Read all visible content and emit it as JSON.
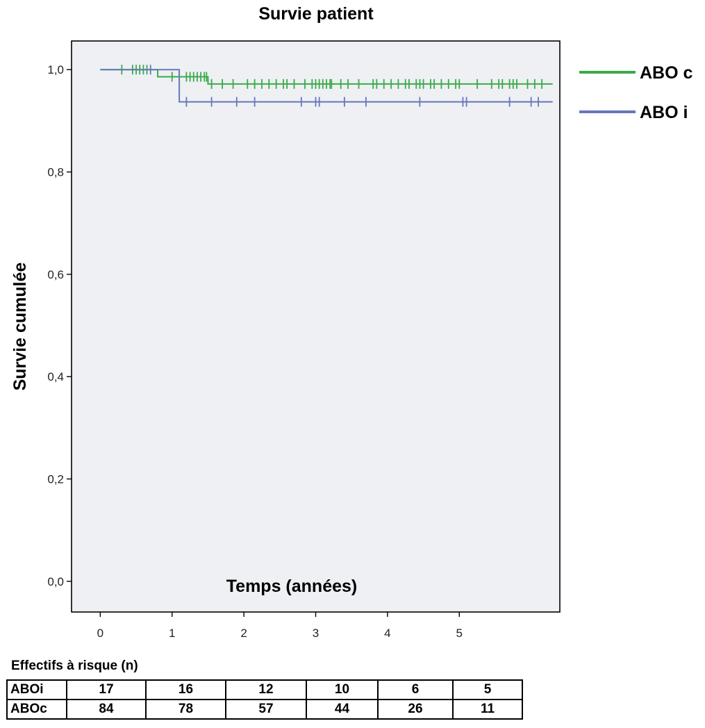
{
  "chart_data": {
    "type": "line",
    "title": "Survie patient",
    "xlabel": "Temps (années)",
    "ylabel": "Survie cumulée",
    "xlim": [
      -0.4,
      6.4
    ],
    "ylim": [
      -0.06,
      1.056
    ],
    "x_ticks": [
      0,
      1,
      2,
      3,
      4,
      5
    ],
    "x_tick_labels": [
      "0",
      "1",
      "2",
      "3",
      "4",
      "5"
    ],
    "y_ticks": [
      0.0,
      0.2,
      0.4,
      0.6,
      0.8,
      1.0
    ],
    "y_tick_labels": [
      "0,0",
      "0,2",
      "0,4",
      "0,6",
      "0,8",
      "1,0"
    ],
    "legend_position": "right",
    "series": [
      {
        "name": "ABO c",
        "color": "#3aaa4a",
        "steps": [
          [
            0,
            1.0
          ],
          [
            0.8,
            0.986
          ],
          [
            1.5,
            0.972
          ],
          [
            6.3,
            0.972
          ]
        ],
        "censored": [
          0.3,
          0.45,
          0.5,
          0.55,
          0.6,
          0.65,
          1.0,
          1.1,
          1.2,
          1.25,
          1.3,
          1.35,
          1.4,
          1.45,
          1.48,
          1.55,
          1.7,
          1.85,
          2.05,
          2.15,
          2.25,
          2.35,
          2.45,
          2.55,
          2.6,
          2.7,
          2.85,
          2.95,
          3.0,
          3.05,
          3.1,
          3.15,
          3.2,
          3.22,
          3.35,
          3.45,
          3.6,
          3.8,
          3.85,
          3.95,
          4.05,
          4.15,
          4.25,
          4.3,
          4.4,
          4.45,
          4.5,
          4.6,
          4.65,
          4.75,
          4.85,
          4.95,
          5.0,
          5.25,
          5.45,
          5.55,
          5.6,
          5.7,
          5.75,
          5.8,
          5.95,
          6.05,
          6.15
        ]
      },
      {
        "name": "ABO i",
        "color": "#6677bb",
        "steps": [
          [
            0,
            1.0
          ],
          [
            1.1,
            0.937
          ],
          [
            6.3,
            0.937
          ]
        ],
        "censored": [
          0.7,
          1.2,
          1.55,
          1.9,
          2.15,
          2.8,
          3.0,
          3.05,
          3.4,
          3.7,
          4.45,
          5.05,
          5.1,
          5.7,
          6.0,
          6.1
        ]
      }
    ]
  },
  "risk_table": {
    "title": "Effectifs à risque (n)",
    "rows": [
      {
        "label": "ABOi",
        "values": [
          "17",
          "16",
          "12",
          "10",
          "6",
          "5"
        ]
      },
      {
        "label": "ABOc",
        "values": [
          "84",
          "78",
          "57",
          "44",
          "26",
          "11"
        ]
      }
    ]
  }
}
